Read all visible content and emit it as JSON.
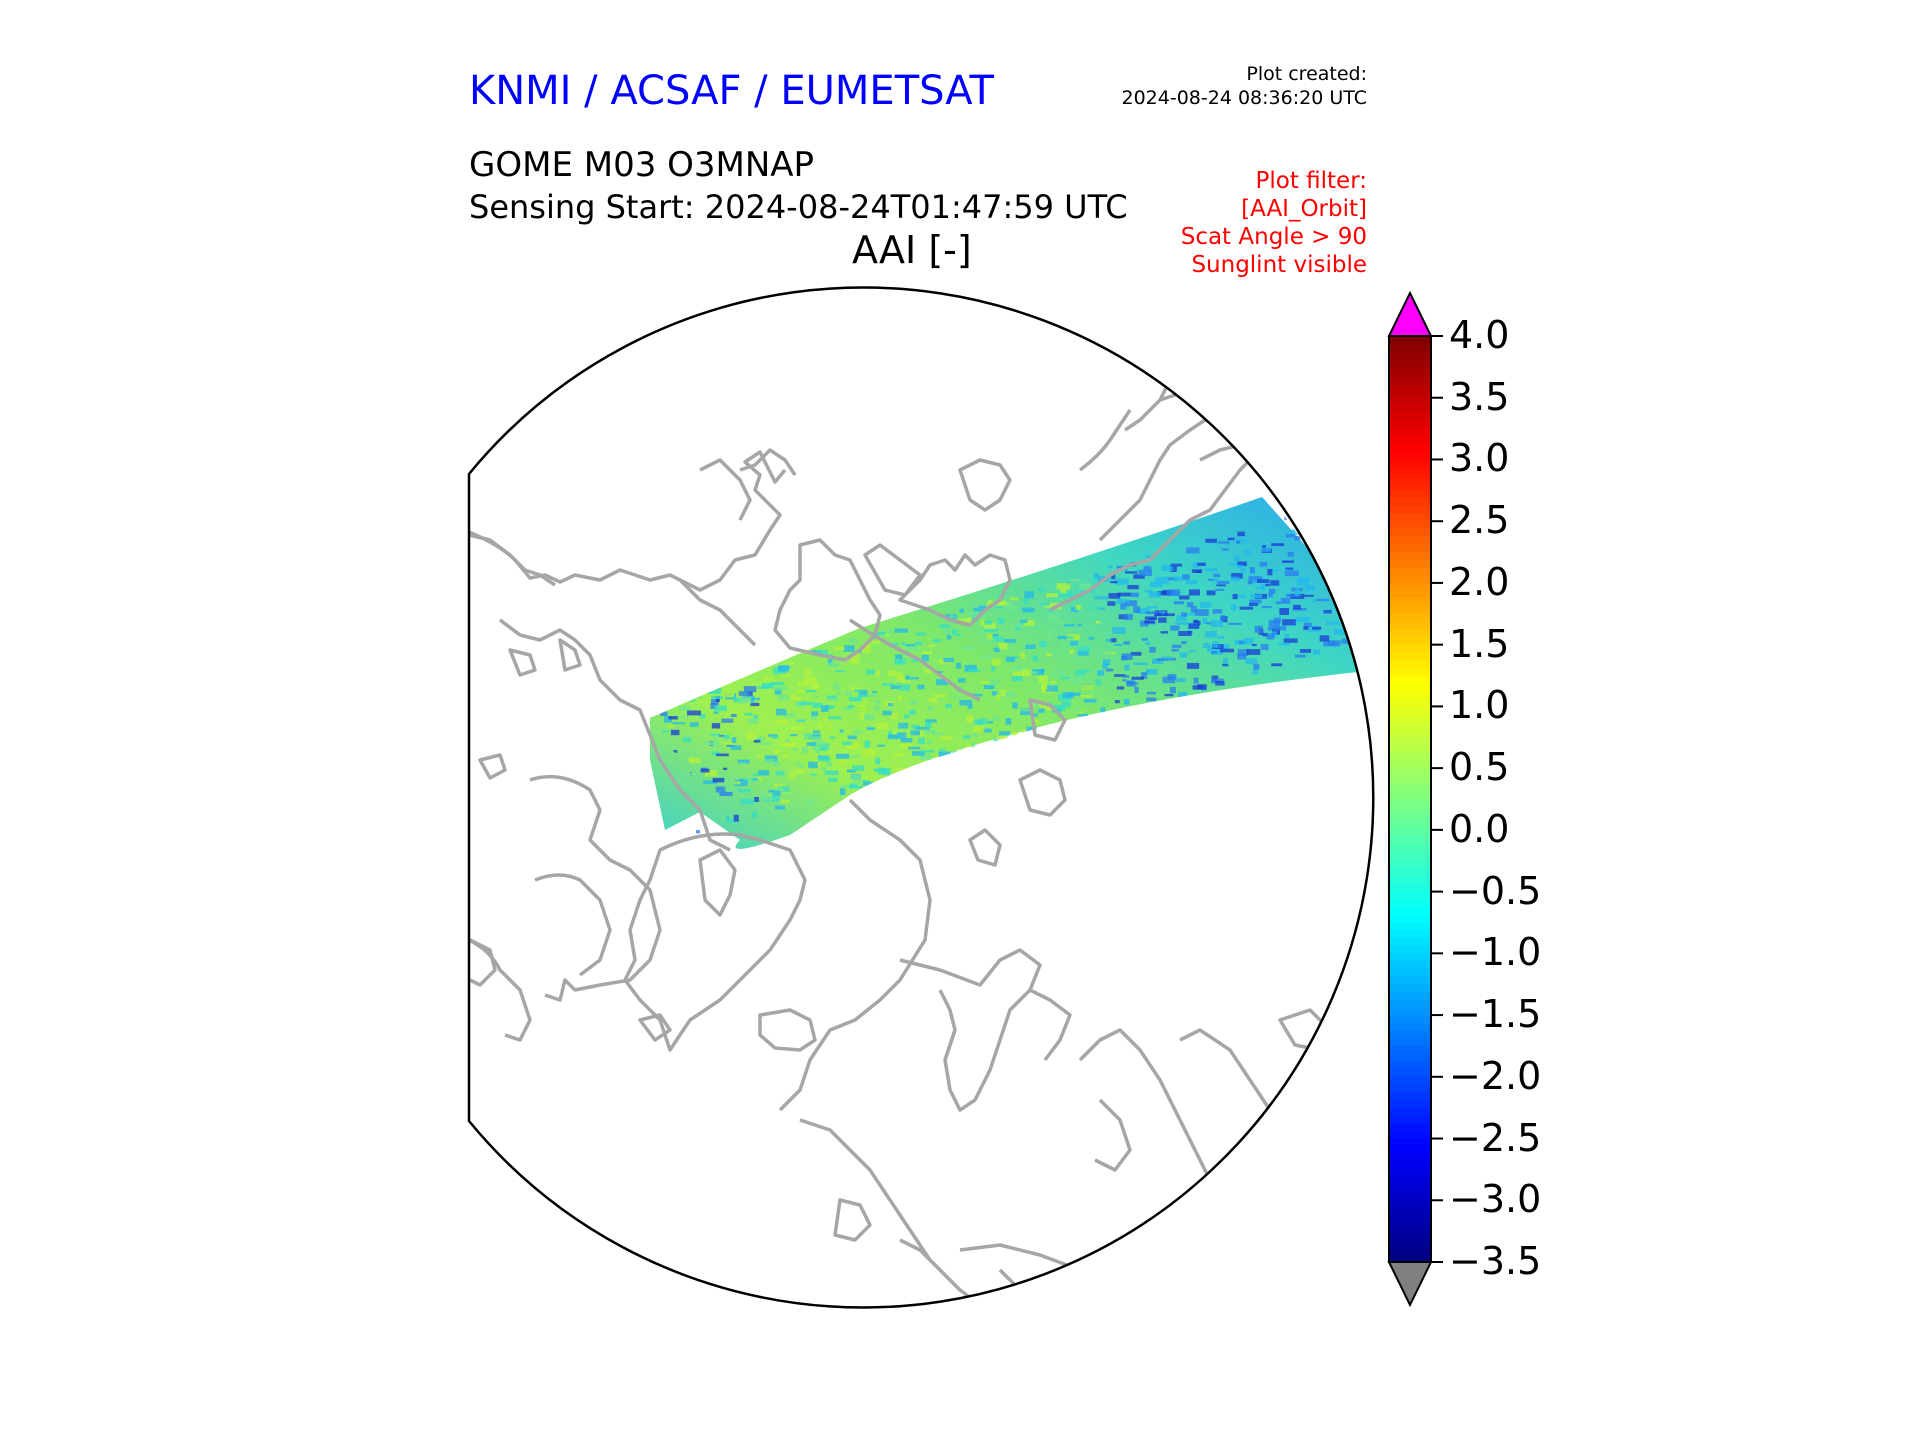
{
  "header": {
    "agency": "KNMI / ACSAF / EUMETSAT",
    "plot_created_label": "Plot created:",
    "plot_created_time": "2024-08-24 08:36:20 UTC",
    "product": "GOME M03 O3MNAP",
    "sensing_start": "Sensing Start: 2024-08-24T01:47:59 UTC",
    "variable_title": "AAI [-]"
  },
  "plot_filter": {
    "lines": [
      "Plot filter:",
      "[AAI_Orbit]",
      "Scat Angle > 90",
      "Sunglint visible"
    ]
  },
  "map": {
    "projection": "north-polar-stereographic",
    "coastline_color": "#a6a6a6",
    "boundary_color": "#000000",
    "swath_colors": [
      "#33ddc8",
      "#6ee58f",
      "#b5f23a",
      "#22b8ee",
      "#2a7cf0",
      "#1a3ad8"
    ]
  },
  "colorbar": {
    "colormap": "jet",
    "min": -3.5,
    "max": 4.0,
    "over_color": "#ff00ff",
    "under_color": "#808080",
    "ticks": [
      {
        "value": 4.0,
        "label": "4.0"
      },
      {
        "value": 3.5,
        "label": "3.5"
      },
      {
        "value": 3.0,
        "label": "3.0"
      },
      {
        "value": 2.5,
        "label": "2.5"
      },
      {
        "value": 2.0,
        "label": "2.0"
      },
      {
        "value": 1.5,
        "label": "1.5"
      },
      {
        "value": 1.0,
        "label": "1.0"
      },
      {
        "value": 0.5,
        "label": "0.5"
      },
      {
        "value": 0.0,
        "label": "0.0"
      },
      {
        "value": -0.5,
        "label": "−0.5"
      },
      {
        "value": -1.0,
        "label": "−1.0"
      },
      {
        "value": -1.5,
        "label": "−1.5"
      },
      {
        "value": -2.0,
        "label": "−2.0"
      },
      {
        "value": -2.5,
        "label": "−2.5"
      },
      {
        "value": -3.0,
        "label": "−3.0"
      },
      {
        "value": -3.5,
        "label": "−3.5"
      }
    ]
  }
}
